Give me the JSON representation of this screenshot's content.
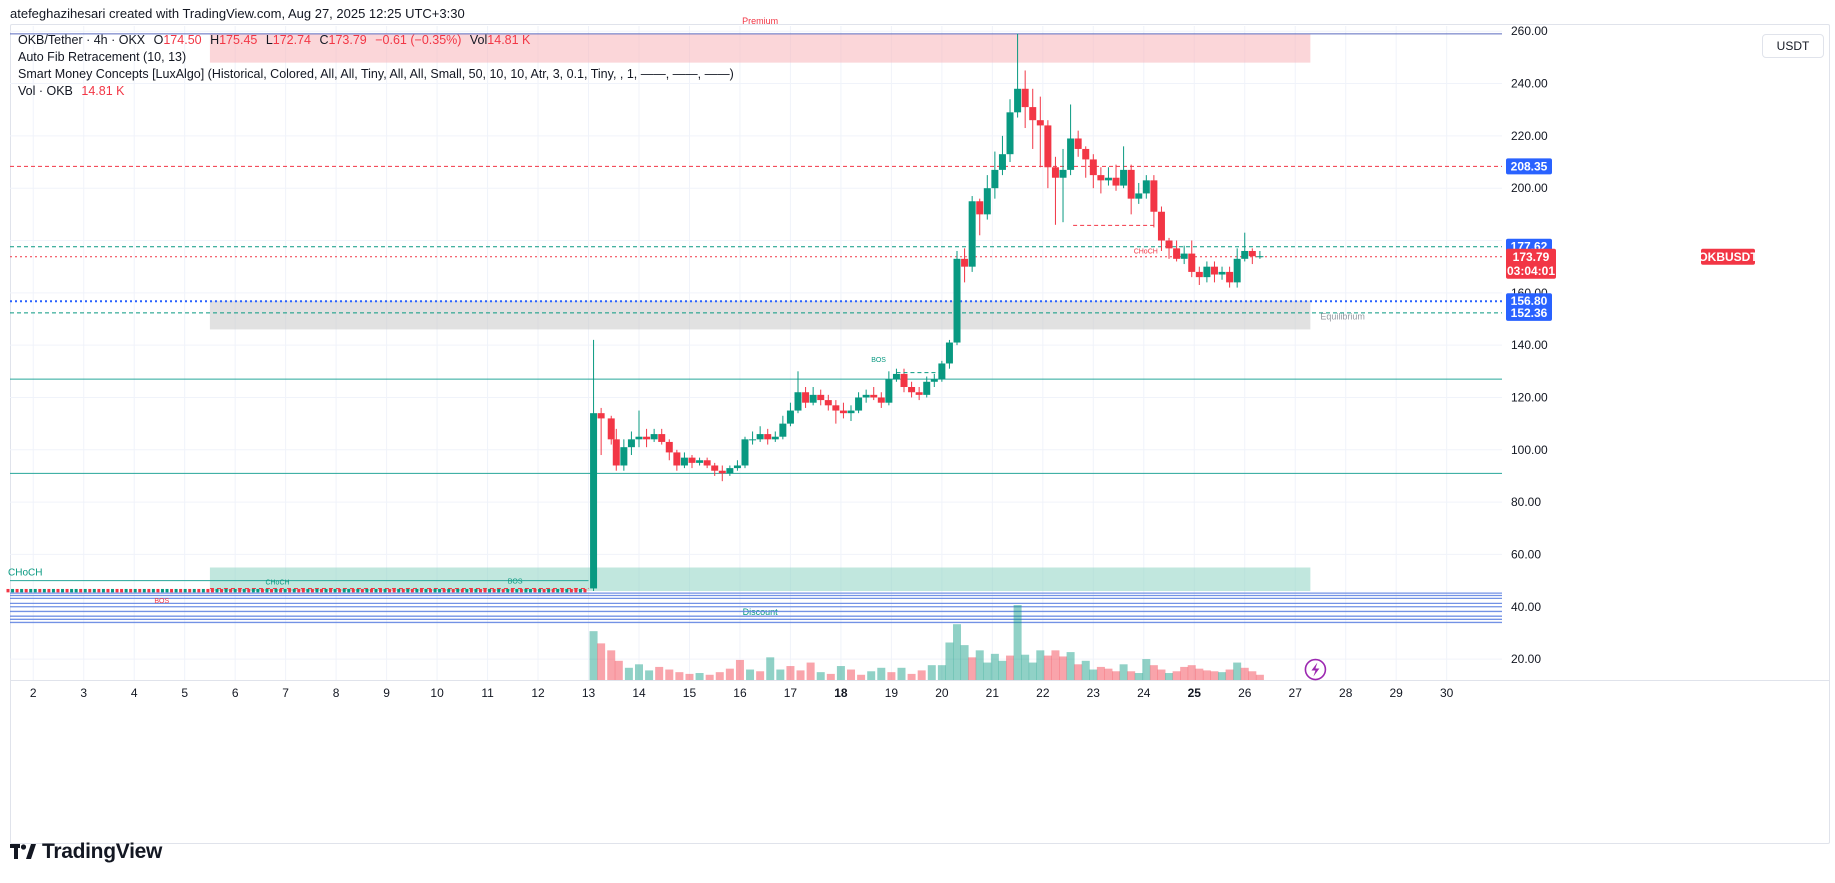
{
  "header": {
    "credit": "atefeghazihesari created with TradingView.com, Aug 27, 2025 12:25 UTC+3:30"
  },
  "legend": {
    "symbol": "OKB/Tether · 4h · OKX",
    "o_label": "O",
    "o_value": "174.50",
    "h_label": "H",
    "h_value": "175.45",
    "l_label": "L",
    "l_value": "172.74",
    "c_label": "C",
    "c_value": "173.79",
    "change": "−0.61 (−0.35%)",
    "vol_label": "Vol",
    "vol_value": "14.81 K",
    "indicator_fib": "Auto Fib Retracement (10, 13)",
    "indicator_smc": "Smart Money Concepts [LuxAlgo] (Historical, Colored, All, All, Tiny, All, All, Small, 50, 10, 10, Atr, 3, 0.1, Tiny, , 1, ——, ——, ——)",
    "vol_row_label": "Vol · OKB",
    "vol_row_value": "14.81 K"
  },
  "currency_button": "USDT",
  "brand": {
    "name": "TradingView",
    "logo": "tradingview-logo-icon"
  },
  "colors": {
    "up": "#089981",
    "down": "#f23645",
    "premium": "#f7b5ba",
    "discount": "#8ed3c2",
    "equilibrium": "#c8c8c8",
    "blue_tag": "#2962ff",
    "fib_teal": "#26a69a"
  },
  "chart_data": {
    "type": "candlestick",
    "symbol": "OKBUSDT",
    "interval": "4h",
    "y_axis": {
      "range": [
        12,
        262
      ],
      "ticks": [
        "20.00",
        "40.00",
        "60.00",
        "80.00",
        "100.00",
        "120.00",
        "140.00",
        "160.00",
        "200.00",
        "220.00",
        "240.00",
        "260.00"
      ]
    },
    "x_axis": {
      "range": [
        1.5,
        30.7
      ],
      "ticks": [
        {
          "v": 2,
          "label": "2"
        },
        {
          "v": 3,
          "label": "3"
        },
        {
          "v": 4,
          "label": "4"
        },
        {
          "v": 5,
          "label": "5"
        },
        {
          "v": 6,
          "label": "6"
        },
        {
          "v": 7,
          "label": "7"
        },
        {
          "v": 8,
          "label": "8"
        },
        {
          "v": 9,
          "label": "9"
        },
        {
          "v": 10,
          "label": "10"
        },
        {
          "v": 11,
          "label": "11"
        },
        {
          "v": 12,
          "label": "12"
        },
        {
          "v": 13,
          "label": "13"
        },
        {
          "v": 14,
          "label": "14"
        },
        {
          "v": 15,
          "label": "15"
        },
        {
          "v": 16,
          "label": "16"
        },
        {
          "v": 17,
          "label": "17"
        },
        {
          "v": 18,
          "label": "18",
          "bold": true
        },
        {
          "v": 19,
          "label": "19"
        },
        {
          "v": 20,
          "label": "20"
        },
        {
          "v": 21,
          "label": "21"
        },
        {
          "v": 22,
          "label": "22"
        },
        {
          "v": 23,
          "label": "23"
        },
        {
          "v": 24,
          "label": "24"
        },
        {
          "v": 25,
          "label": "25",
          "bold": true
        },
        {
          "v": 26,
          "label": "26"
        },
        {
          "v": 27,
          "label": "27"
        },
        {
          "v": 28,
          "label": "28"
        },
        {
          "v": 29,
          "label": "29"
        },
        {
          "v": 30,
          "label": "30"
        }
      ]
    },
    "price_tags": [
      {
        "value": 208.35,
        "label": "208.35",
        "color": "#2962ff"
      },
      {
        "value": 177.62,
        "label": "177.62",
        "color": "#2962ff"
      },
      {
        "value": 156.8,
        "label": "156.80",
        "color": "#2962ff"
      },
      {
        "value": 152.36,
        "label": "152.36",
        "color": "#2962ff"
      }
    ],
    "last_price_tag": {
      "value": 173.79,
      "symbol": "OKBUSDT",
      "price": "173.79",
      "countdown": "03:04:01",
      "color": "#f23645"
    },
    "zones": [
      {
        "name": "Premium",
        "from": 248,
        "to": 259,
        "x0": 5.5,
        "x1": 27.3,
        "color": "#f7b5ba",
        "label": "Premium"
      },
      {
        "name": "Equilibrium",
        "from": 146,
        "to": 157,
        "x0": 5.5,
        "x1": 27.3,
        "color": "#c8c8c8",
        "label": "Equilibrium"
      },
      {
        "name": "Discount",
        "from": 46,
        "to": 55,
        "x0": 5.5,
        "x1": 27.3,
        "color": "#8ed3c2",
        "label": "Discount"
      }
    ],
    "horizontal_lines": [
      {
        "y": 259,
        "color": "#5b6bbf",
        "style": "solid"
      },
      {
        "y": 208.35,
        "color": "#f23645",
        "style": "dashed"
      },
      {
        "y": 177.62,
        "color": "#089981",
        "style": "dashed"
      },
      {
        "y": 173.79,
        "color": "#f23645",
        "style": "dotted"
      },
      {
        "y": 156.8,
        "color": "#2962ff",
        "style": "dotted"
      },
      {
        "y": 152.36,
        "color": "#089981",
        "style": "dashed"
      },
      {
        "y": 127,
        "color": "#26a69a",
        "style": "solid"
      },
      {
        "y": 91,
        "color": "#26a69a",
        "style": "solid"
      },
      {
        "y": 50,
        "color": "#26a69a",
        "style": "solid",
        "x1": 13
      }
    ],
    "structure_labels": [
      {
        "text": "CHoCH",
        "x": 1.5,
        "y": 52,
        "color": "#089981"
      },
      {
        "text": "CHoCH",
        "x": 6.6,
        "y": 48.5,
        "color": "#089981"
      },
      {
        "text": "BOS",
        "x": 11.4,
        "y": 48.8,
        "color": "#089981"
      },
      {
        "text": "BOS",
        "x": 4.4,
        "y": 41.5,
        "color": "#f23645"
      },
      {
        "text": "BOS",
        "x": 18.6,
        "y": 133.5,
        "color": "#089981"
      },
      {
        "text": "CHoCH",
        "x": 23.8,
        "y": 175,
        "color": "#f23645"
      }
    ],
    "candles": [
      [
        13.1,
        47,
        114,
        142,
        46
      ],
      [
        13.25,
        114,
        112,
        116,
        98
      ],
      [
        13.45,
        112,
        104,
        113,
        102
      ],
      [
        13.55,
        104,
        94,
        108,
        92
      ],
      [
        13.7,
        94,
        101,
        104,
        92
      ],
      [
        13.85,
        101,
        104,
        107,
        98
      ],
      [
        14.0,
        104,
        105,
        115,
        101
      ],
      [
        14.15,
        105,
        104,
        108,
        101
      ],
      [
        14.3,
        104,
        106,
        108,
        103
      ],
      [
        14.45,
        106,
        103,
        108,
        102
      ],
      [
        14.6,
        103,
        99,
        104,
        96
      ],
      [
        14.75,
        99,
        94,
        100,
        92
      ],
      [
        14.9,
        94,
        97,
        99,
        93
      ],
      [
        15.05,
        97,
        95,
        98,
        93
      ],
      [
        15.2,
        95,
        96,
        97,
        94
      ],
      [
        15.35,
        96,
        94,
        97,
        93
      ],
      [
        15.5,
        94,
        92,
        95,
        90
      ],
      [
        15.65,
        92,
        91,
        94,
        88
      ],
      [
        15.8,
        91,
        93,
        94,
        90
      ],
      [
        15.95,
        93,
        94,
        96,
        92
      ],
      [
        16.1,
        94,
        104,
        105,
        93
      ],
      [
        16.25,
        104,
        104,
        107,
        102
      ],
      [
        16.4,
        104,
        106,
        109,
        103
      ],
      [
        16.55,
        106,
        104,
        108,
        102
      ],
      [
        16.7,
        104,
        105,
        107,
        103
      ],
      [
        16.85,
        105,
        110,
        113,
        104
      ],
      [
        17.0,
        110,
        115,
        118,
        109
      ],
      [
        17.15,
        115,
        122,
        130,
        114
      ],
      [
        17.3,
        122,
        118,
        124,
        116
      ],
      [
        17.45,
        118,
        121,
        124,
        117
      ],
      [
        17.6,
        121,
        119,
        123,
        117
      ],
      [
        17.75,
        119,
        117,
        121,
        115
      ],
      [
        17.9,
        117,
        115,
        119,
        110
      ],
      [
        18.05,
        115,
        114,
        118,
        112
      ],
      [
        18.2,
        114,
        115,
        117,
        111
      ],
      [
        18.35,
        115,
        120,
        122,
        114
      ],
      [
        18.5,
        120,
        121,
        123,
        118
      ],
      [
        18.65,
        121,
        120,
        124,
        119
      ],
      [
        18.8,
        120,
        118,
        122,
        116
      ],
      [
        18.95,
        118,
        127,
        130,
        117
      ],
      [
        19.1,
        127,
        129,
        131,
        126
      ],
      [
        19.25,
        129,
        124,
        131,
        122
      ],
      [
        19.4,
        124,
        122,
        126,
        120
      ],
      [
        19.55,
        122,
        121,
        124,
        119
      ],
      [
        19.7,
        121,
        126,
        128,
        120
      ],
      [
        19.85,
        126,
        127,
        129,
        124
      ],
      [
        20.0,
        127,
        133,
        134,
        126
      ],
      [
        20.15,
        133,
        141,
        142,
        131
      ],
      [
        20.3,
        141,
        173,
        176,
        140
      ],
      [
        20.45,
        173,
        170,
        177,
        164
      ],
      [
        20.6,
        170,
        195,
        197,
        168
      ],
      [
        20.75,
        195,
        190,
        196,
        182
      ],
      [
        20.9,
        190,
        200,
        205,
        188
      ],
      [
        21.05,
        200,
        207,
        214,
        196
      ],
      [
        21.2,
        207,
        213,
        220,
        205
      ],
      [
        21.35,
        213,
        229,
        234,
        210
      ],
      [
        21.5,
        229,
        238,
        259,
        227
      ],
      [
        21.65,
        238,
        231,
        245,
        223
      ],
      [
        21.8,
        231,
        226,
        238,
        215
      ],
      [
        21.95,
        226,
        224,
        235,
        208
      ],
      [
        22.1,
        224,
        208,
        226,
        200
      ],
      [
        22.25,
        208,
        204,
        212,
        186
      ],
      [
        22.4,
        204,
        207,
        215,
        187
      ],
      [
        22.55,
        207,
        219,
        232,
        205
      ],
      [
        22.7,
        219,
        215,
        222,
        212
      ],
      [
        22.85,
        215,
        211,
        216,
        204
      ],
      [
        23.0,
        211,
        205,
        213,
        200
      ],
      [
        23.15,
        205,
        203,
        208,
        198
      ],
      [
        23.3,
        203,
        204,
        208,
        201
      ],
      [
        23.45,
        204,
        201,
        209,
        199
      ],
      [
        23.6,
        201,
        207,
        216,
        200
      ],
      [
        23.75,
        207,
        196,
        209,
        190
      ],
      [
        23.9,
        196,
        198,
        202,
        194
      ],
      [
        24.05,
        198,
        203,
        205,
        196
      ],
      [
        24.2,
        203,
        191,
        205,
        185
      ],
      [
        24.35,
        191,
        180,
        193,
        176
      ],
      [
        24.5,
        180,
        177,
        181,
        173
      ],
      [
        24.65,
        177,
        173,
        180,
        172
      ],
      [
        24.8,
        173,
        175,
        178,
        171
      ],
      [
        24.95,
        175,
        168,
        180,
        166
      ],
      [
        25.1,
        168,
        166,
        170,
        163
      ],
      [
        25.25,
        166,
        170,
        172,
        164
      ],
      [
        25.4,
        170,
        167,
        172,
        164
      ],
      [
        25.55,
        167,
        168,
        170,
        165
      ],
      [
        25.7,
        168,
        164,
        170,
        162
      ],
      [
        25.85,
        164,
        173,
        177,
        162
      ],
      [
        26.0,
        173,
        176,
        183,
        172
      ],
      [
        26.15,
        176,
        174,
        177,
        171
      ],
      [
        26.3,
        174,
        174,
        176,
        173
      ]
    ],
    "background_candles": {
      "from_x": 1.5,
      "to_x": 13.0,
      "low": 45.5,
      "high": 46.8
    },
    "volume": {
      "scale_top_value": 56,
      "pixel_band": [
        605,
        680
      ]
    },
    "volume_bars": [
      [
        13.1,
        56,
        "up"
      ],
      [
        13.25,
        42,
        "down"
      ],
      [
        13.45,
        34,
        "down"
      ],
      [
        13.6,
        22,
        "down"
      ],
      [
        13.8,
        14,
        "up"
      ],
      [
        14.0,
        18,
        "up"
      ],
      [
        14.2,
        11,
        "up"
      ],
      [
        14.4,
        15,
        "down"
      ],
      [
        14.6,
        12,
        "down"
      ],
      [
        14.8,
        9,
        "down"
      ],
      [
        15.0,
        7,
        "down"
      ],
      [
        15.2,
        8,
        "up"
      ],
      [
        15.4,
        6,
        "down"
      ],
      [
        15.6,
        9,
        "down"
      ],
      [
        15.8,
        13,
        "down"
      ],
      [
        16.0,
        23,
        "down"
      ],
      [
        16.2,
        12,
        "up"
      ],
      [
        16.4,
        10,
        "down"
      ],
      [
        16.6,
        26,
        "up"
      ],
      [
        16.8,
        12,
        "up"
      ],
      [
        17.0,
        16,
        "down"
      ],
      [
        17.2,
        11,
        "down"
      ],
      [
        17.4,
        20,
        "down"
      ],
      [
        17.6,
        9,
        "up"
      ],
      [
        17.8,
        7,
        "down"
      ],
      [
        18.0,
        16,
        "up"
      ],
      [
        18.2,
        12,
        "down"
      ],
      [
        18.4,
        6,
        "down"
      ],
      [
        18.6,
        10,
        "up"
      ],
      [
        18.8,
        14,
        "up"
      ],
      [
        19.0,
        9,
        "down"
      ],
      [
        19.2,
        14,
        "up"
      ],
      [
        19.4,
        7,
        "down"
      ],
      [
        19.6,
        11,
        "down"
      ],
      [
        19.8,
        17,
        "up"
      ],
      [
        20.0,
        17,
        "up"
      ],
      [
        20.15,
        43,
        "up"
      ],
      [
        20.3,
        64,
        "up"
      ],
      [
        20.45,
        40,
        "up"
      ],
      [
        20.6,
        26,
        "down"
      ],
      [
        20.75,
        34,
        "up"
      ],
      [
        20.9,
        20,
        "up"
      ],
      [
        21.05,
        30,
        "up"
      ],
      [
        21.2,
        22,
        "up"
      ],
      [
        21.35,
        28,
        "down"
      ],
      [
        21.5,
        86,
        "up"
      ],
      [
        21.65,
        29,
        "up"
      ],
      [
        21.8,
        20,
        "up"
      ],
      [
        21.95,
        34,
        "up"
      ],
      [
        22.1,
        28,
        "down"
      ],
      [
        22.25,
        34,
        "down"
      ],
      [
        22.4,
        27,
        "down"
      ],
      [
        22.55,
        32,
        "up"
      ],
      [
        22.7,
        18,
        "down"
      ],
      [
        22.85,
        22,
        "up"
      ],
      [
        23.0,
        12,
        "up"
      ],
      [
        23.15,
        15,
        "down"
      ],
      [
        23.3,
        13,
        "down"
      ],
      [
        23.45,
        10,
        "down"
      ],
      [
        23.6,
        18,
        "up"
      ],
      [
        23.75,
        10,
        "down"
      ],
      [
        23.9,
        8,
        "up"
      ],
      [
        24.05,
        24,
        "up"
      ],
      [
        24.2,
        17,
        "down"
      ],
      [
        24.35,
        12,
        "down"
      ],
      [
        24.5,
        8,
        "up"
      ],
      [
        24.65,
        10,
        "down"
      ],
      [
        24.8,
        15,
        "down"
      ],
      [
        24.95,
        17,
        "down"
      ],
      [
        25.1,
        13,
        "down"
      ],
      [
        25.25,
        11,
        "down"
      ],
      [
        25.4,
        10,
        "down"
      ],
      [
        25.55,
        9,
        "up"
      ],
      [
        25.7,
        12,
        "down"
      ],
      [
        25.85,
        20,
        "up"
      ],
      [
        26.0,
        14,
        "down"
      ],
      [
        26.15,
        10,
        "down"
      ],
      [
        26.3,
        6,
        "down"
      ]
    ],
    "grid": true,
    "legend_position": "top-left"
  }
}
